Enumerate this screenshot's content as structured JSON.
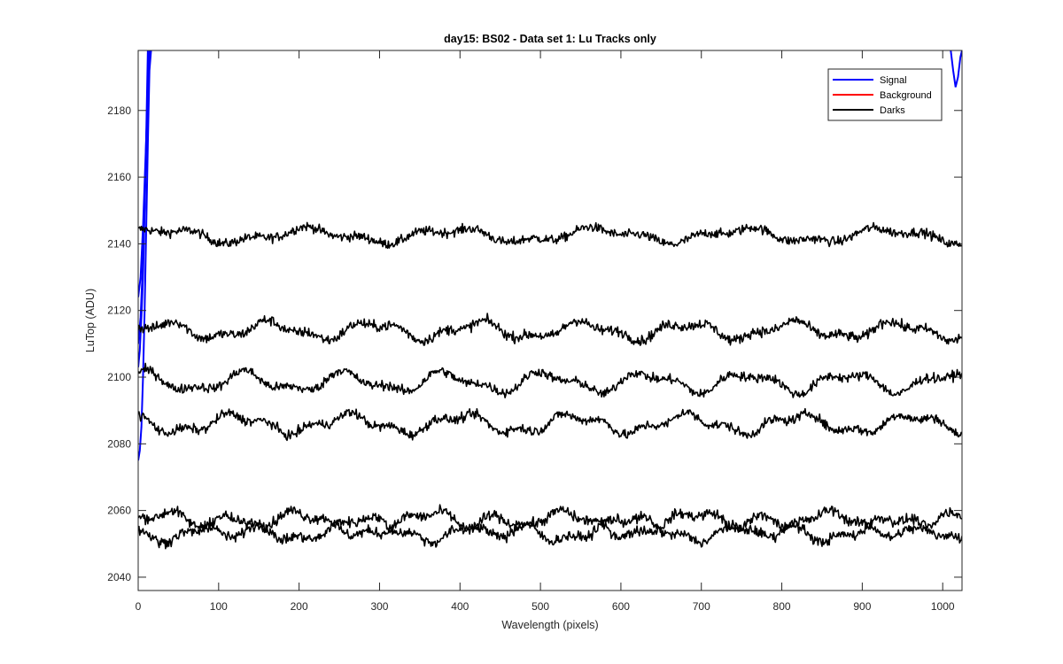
{
  "chart_data": {
    "type": "line",
    "title": "day15: BS02 - Data set 1: Lu Tracks only",
    "xlabel": "Wavelength (pixels)",
    "ylabel": "LuTop (ADU)",
    "xlim": [
      0,
      1024
    ],
    "ylim": [
      2036,
      2198
    ],
    "xticks": [
      0,
      100,
      200,
      300,
      400,
      500,
      600,
      700,
      800,
      900,
      1000
    ],
    "yticks": [
      2040,
      2060,
      2080,
      2100,
      2120,
      2140,
      2160,
      2180
    ],
    "grid": false,
    "legend": {
      "placement": "top-right",
      "entries": [
        "Signal",
        "Background",
        "Darks"
      ]
    },
    "colors": {
      "Signal": "#0000ff",
      "Background": "#ff0000",
      "Darks": "#000000"
    },
    "series": [
      {
        "name": "Signal",
        "color": "#0000ff",
        "note_segments": "rises off the top edge near x=15 and re-enters near x=1005-1024",
        "segments": [
          {
            "x": [
              0,
              2,
              4,
              6,
              8,
              10,
              12,
              14,
              16
            ],
            "y": [
              2075,
              2078,
              2085,
              2100,
              2120,
              2145,
              2170,
              2192,
              2198
            ]
          },
          {
            "x": [
              0,
              2,
              4,
              6,
              8,
              10,
              12,
              14
            ],
            "y": [
              2103,
              2108,
              2118,
              2130,
              2150,
              2170,
              2190,
              2198
            ]
          },
          {
            "x": [
              0,
              3,
              6,
              9,
              12,
              15
            ],
            "y": [
              2124,
              2130,
              2145,
              2165,
              2185,
              2198
            ]
          },
          {
            "x": [
              0,
              3,
              6,
              9,
              12
            ],
            "y": [
              2110,
              2118,
              2135,
              2160,
              2198
            ]
          },
          {
            "x": [
              1010,
              1013,
              1016,
              1019,
              1022,
              1024
            ],
            "y": [
              2198,
              2192,
              2187,
              2190,
              2196,
              2198
            ]
          }
        ]
      },
      {
        "name": "Darks",
        "color": "#000000",
        "x_range": [
          0,
          1024
        ],
        "tracks": [
          {
            "mean": 2142.5,
            "wave": [
              [
                1.8,
                180,
                0.5
              ],
              [
                0.9,
                70,
                1.7
              ]
            ],
            "noise": 1.0
          },
          {
            "mean": 2114,
            "wave": [
              [
                2.2,
                130,
                0.0
              ],
              [
                1.0,
                55,
                2.3
              ]
            ],
            "noise": 1.1
          },
          {
            "mean": 2098.5,
            "wave": [
              [
                2.5,
                125,
                1.2
              ],
              [
                1.2,
                60,
                0.4
              ]
            ],
            "noise": 1.0
          },
          {
            "mean": 2086,
            "wave": [
              [
                2.4,
                140,
                2.4
              ],
              [
                1.1,
                52,
                1.0
              ]
            ],
            "noise": 1.0
          },
          {
            "mean": 2056,
            "wave": [
              [
                3.2,
                165,
                0.3
              ],
              [
                1.0,
                48,
                2.0
              ]
            ],
            "noise": 1.1
          },
          {
            "mean": 2054.5,
            "wave": [
              [
                3.2,
                165,
                3.45
              ],
              [
                1.0,
                48,
                0.7
              ]
            ],
            "noise": 1.1
          }
        ]
      }
    ]
  }
}
